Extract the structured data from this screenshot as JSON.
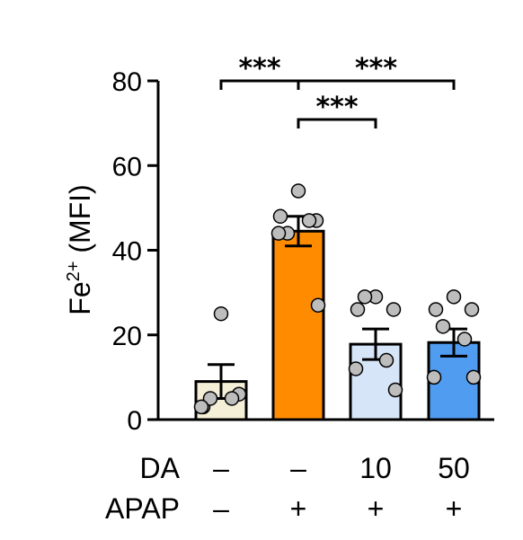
{
  "chart_data": {
    "type": "bar",
    "ylabel": {
      "base": "Fe",
      "sup": "2+",
      "rest": " (MFI)"
    },
    "ylim": [
      0,
      80
    ],
    "yticks": [
      0,
      20,
      40,
      60,
      80
    ],
    "ytick_labels": [
      "0",
      "20",
      "40",
      "60",
      "80"
    ],
    "bars": [
      {
        "mean": 9,
        "sem": 4,
        "color": "#F4EFD6",
        "points": [
          25,
          3,
          6,
          5,
          5,
          3
        ]
      },
      {
        "mean": 44.5,
        "sem": 3.5,
        "color": "#FF8C00",
        "points": [
          54,
          48,
          47,
          44,
          47,
          44,
          27
        ]
      },
      {
        "mean": 17.8,
        "sem": 3.6,
        "color": "#D6E6F8",
        "points": [
          29,
          26,
          26,
          29,
          14,
          12,
          7
        ]
      },
      {
        "mean": 18.2,
        "sem": 3.2,
        "color": "#4F9CF0",
        "points": [
          29,
          26,
          26,
          22,
          19,
          10,
          10
        ]
      }
    ],
    "rows": [
      {
        "label": "DA",
        "values": [
          "–",
          "–",
          "10",
          "50"
        ]
      },
      {
        "label": "APAP",
        "values": [
          "–",
          "+",
          "+",
          "+"
        ]
      }
    ],
    "significance": [
      {
        "from": 0,
        "to": 1,
        "label": "***"
      },
      {
        "from": 1,
        "to": 3,
        "label": "***"
      },
      {
        "from": 1,
        "to": 2,
        "label": "***"
      }
    ]
  }
}
